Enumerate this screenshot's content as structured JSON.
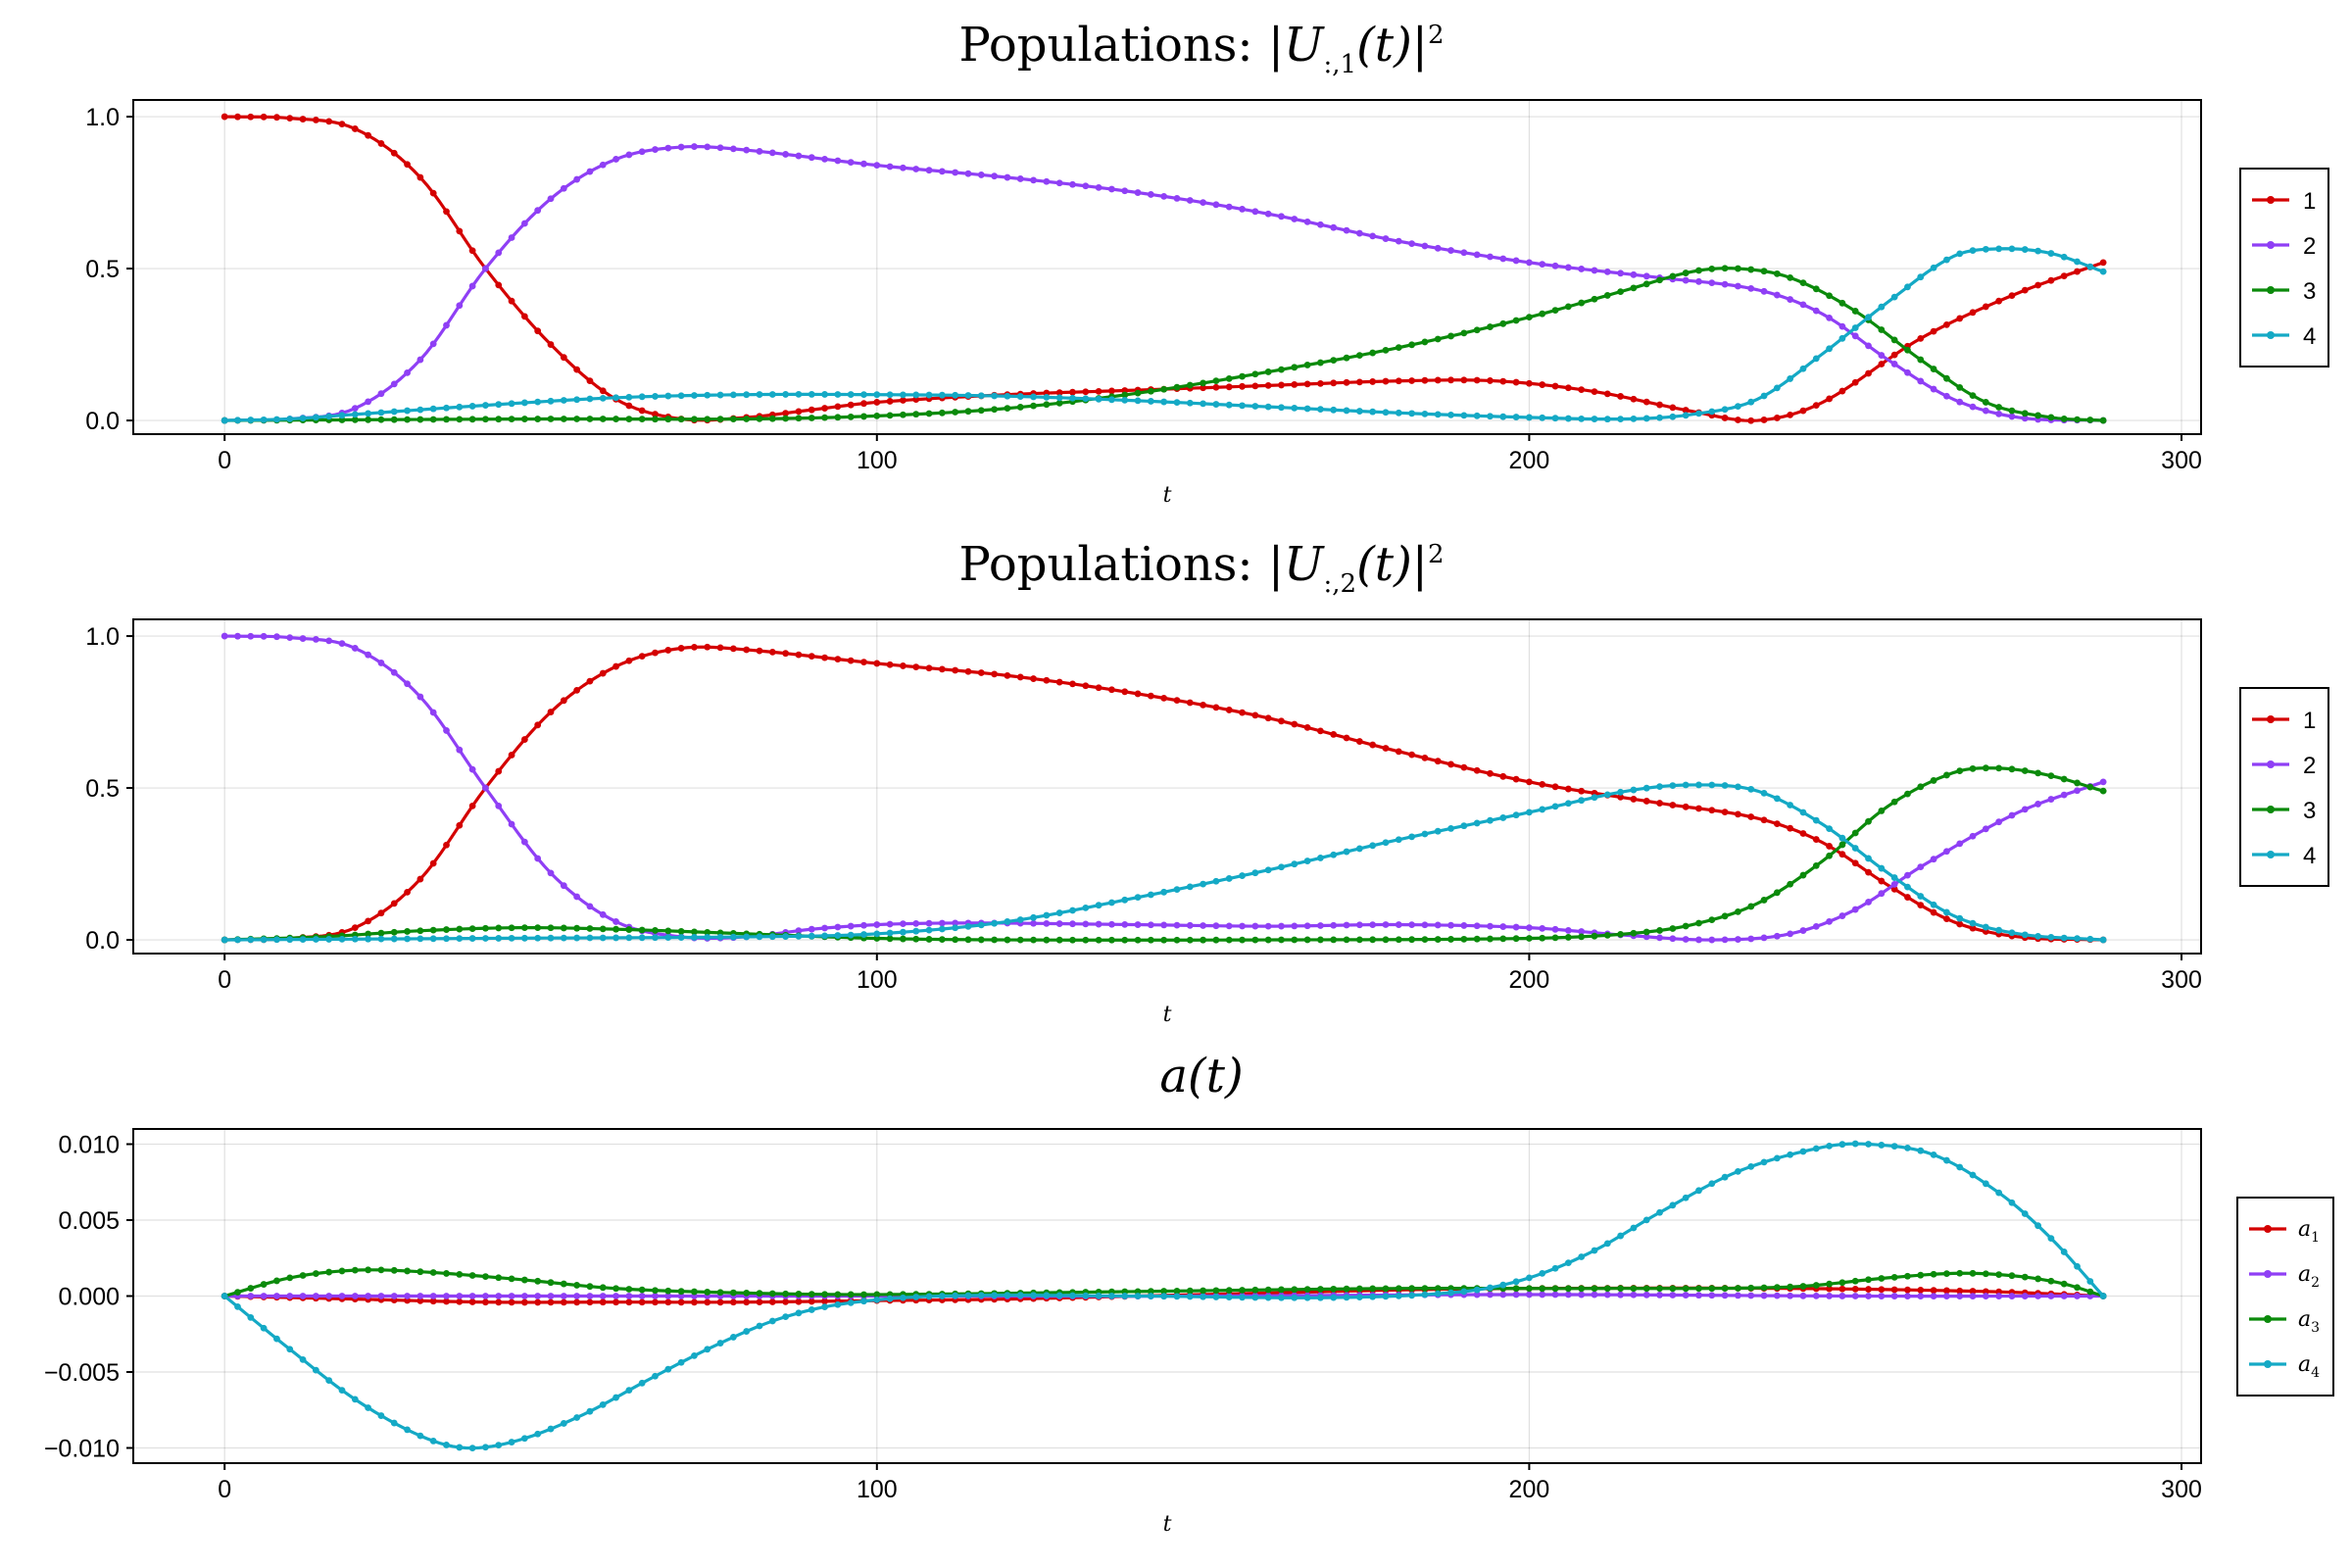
{
  "chart_data": [
    {
      "type": "line",
      "title": "Populations :  |U_{:,1}(t)|²",
      "title_parts": [
        "Populations",
        ":  ",
        "|U",
        ":,1",
        "(t)|",
        "2"
      ],
      "xlabel": "t",
      "ylabel": "",
      "xlim": [
        -14,
        303
      ],
      "ylim": [
        -0.045,
        1.055
      ],
      "xticks": [
        0,
        100,
        200,
        300
      ],
      "xtick_labels": [
        "0",
        "100",
        "200",
        "300"
      ],
      "yticks": [
        0.0,
        0.5,
        1.0
      ],
      "ytick_labels": [
        "0.0",
        "0.5",
        "1.0"
      ],
      "grid": true,
      "legend_position": "right",
      "marker": "small-dot",
      "x_range": [
        0,
        288
      ],
      "series": [
        {
          "name": "1",
          "color": "#d40000",
          "points": [
            [
              0,
              1.0
            ],
            [
              10,
              0.995
            ],
            [
              20,
              0.96
            ],
            [
              30,
              0.8
            ],
            [
              40,
              0.5
            ],
            [
              50,
              0.25
            ],
            [
              60,
              0.07
            ],
            [
              70,
              0.005
            ],
            [
              80,
              0.01
            ],
            [
              90,
              0.035
            ],
            [
              100,
              0.06
            ],
            [
              120,
              0.085
            ],
            [
              140,
              0.1
            ],
            [
              160,
              0.115
            ],
            [
              180,
              0.13
            ],
            [
              195,
              0.13
            ],
            [
              210,
              0.095
            ],
            [
              225,
              0.03
            ],
            [
              235,
              0.0
            ],
            [
              245,
              0.06
            ],
            [
              260,
              0.27
            ],
            [
              275,
              0.42
            ],
            [
              288,
              0.52
            ]
          ]
        },
        {
          "name": "2",
          "color": "#8f3ff5",
          "points": [
            [
              0,
              0.0
            ],
            [
              10,
              0.005
            ],
            [
              20,
              0.04
            ],
            [
              30,
              0.2
            ],
            [
              40,
              0.5
            ],
            [
              50,
              0.73
            ],
            [
              60,
              0.86
            ],
            [
              70,
              0.9
            ],
            [
              80,
              0.89
            ],
            [
              100,
              0.84
            ],
            [
              120,
              0.8
            ],
            [
              140,
              0.75
            ],
            [
              160,
              0.68
            ],
            [
              180,
              0.59
            ],
            [
              200,
              0.52
            ],
            [
              220,
              0.47
            ],
            [
              235,
              0.43
            ],
            [
              245,
              0.35
            ],
            [
              255,
              0.2
            ],
            [
              265,
              0.07
            ],
            [
              275,
              0.01
            ],
            [
              288,
              0.0
            ]
          ]
        },
        {
          "name": "3",
          "color": "#0b8a0b",
          "points": [
            [
              0,
              0.0
            ],
            [
              50,
              0.005
            ],
            [
              80,
              0.005
            ],
            [
              100,
              0.015
            ],
            [
              120,
              0.04
            ],
            [
              140,
              0.09
            ],
            [
              160,
              0.16
            ],
            [
              180,
              0.24
            ],
            [
              200,
              0.34
            ],
            [
              215,
              0.43
            ],
            [
              225,
              0.49
            ],
            [
              232,
              0.5
            ],
            [
              240,
              0.47
            ],
            [
              250,
              0.36
            ],
            [
              260,
              0.2
            ],
            [
              270,
              0.06
            ],
            [
              280,
              0.01
            ],
            [
              288,
              0.0
            ]
          ]
        },
        {
          "name": "4",
          "color": "#14a9c5",
          "points": [
            [
              0,
              0.0
            ],
            [
              10,
              0.005
            ],
            [
              20,
              0.02
            ],
            [
              40,
              0.05
            ],
            [
              60,
              0.075
            ],
            [
              80,
              0.085
            ],
            [
              100,
              0.085
            ],
            [
              120,
              0.08
            ],
            [
              140,
              0.065
            ],
            [
              160,
              0.045
            ],
            [
              180,
              0.025
            ],
            [
              200,
              0.01
            ],
            [
              215,
              0.005
            ],
            [
              225,
              0.02
            ],
            [
              235,
              0.07
            ],
            [
              245,
              0.22
            ],
            [
              255,
              0.39
            ],
            [
              265,
              0.54
            ],
            [
              272,
              0.565
            ],
            [
              280,
              0.55
            ],
            [
              288,
              0.49
            ]
          ]
        }
      ]
    },
    {
      "type": "line",
      "title": "Populations :  |U_{:,2}(t)|²",
      "title_parts": [
        "Populations",
        ":  ",
        "|U",
        ":,2",
        "(t)|",
        "2"
      ],
      "xlabel": "t",
      "ylabel": "",
      "xlim": [
        -14,
        303
      ],
      "ylim": [
        -0.045,
        1.055
      ],
      "xticks": [
        0,
        100,
        200,
        300
      ],
      "xtick_labels": [
        "0",
        "100",
        "200",
        "300"
      ],
      "yticks": [
        0.0,
        0.5,
        1.0
      ],
      "ytick_labels": [
        "0.0",
        "0.5",
        "1.0"
      ],
      "grid": true,
      "legend_position": "right",
      "marker": "small-dot",
      "x_range": [
        0,
        288
      ],
      "series": [
        {
          "name": "1",
          "color": "#d40000",
          "points": [
            [
              0,
              0.0
            ],
            [
              10,
              0.005
            ],
            [
              20,
              0.04
            ],
            [
              30,
              0.2
            ],
            [
              40,
              0.5
            ],
            [
              50,
              0.75
            ],
            [
              60,
              0.9
            ],
            [
              70,
              0.96
            ],
            [
              80,
              0.955
            ],
            [
              100,
              0.91
            ],
            [
              120,
              0.87
            ],
            [
              140,
              0.81
            ],
            [
              160,
              0.73
            ],
            [
              180,
              0.62
            ],
            [
              200,
              0.52
            ],
            [
              220,
              0.45
            ],
            [
              235,
              0.4
            ],
            [
              245,
              0.32
            ],
            [
              255,
              0.18
            ],
            [
              265,
              0.06
            ],
            [
              275,
              0.01
            ],
            [
              288,
              0.0
            ]
          ]
        },
        {
          "name": "2",
          "color": "#8f3ff5",
          "points": [
            [
              0,
              1.0
            ],
            [
              10,
              0.995
            ],
            [
              20,
              0.96
            ],
            [
              30,
              0.8
            ],
            [
              40,
              0.5
            ],
            [
              50,
              0.22
            ],
            [
              60,
              0.06
            ],
            [
              70,
              0.01
            ],
            [
              80,
              0.01
            ],
            [
              90,
              0.035
            ],
            [
              100,
              0.05
            ],
            [
              110,
              0.055
            ],
            [
              120,
              0.055
            ],
            [
              140,
              0.05
            ],
            [
              160,
              0.045
            ],
            [
              180,
              0.05
            ],
            [
              200,
              0.04
            ],
            [
              215,
              0.015
            ],
            [
              228,
              0.0
            ],
            [
              240,
              0.02
            ],
            [
              250,
              0.1
            ],
            [
              260,
              0.24
            ],
            [
              275,
              0.42
            ],
            [
              288,
              0.52
            ]
          ]
        },
        {
          "name": "3",
          "color": "#0b8a0b",
          "points": [
            [
              0,
              0.0
            ],
            [
              15,
              0.01
            ],
            [
              30,
              0.03
            ],
            [
              45,
              0.04
            ],
            [
              60,
              0.035
            ],
            [
              80,
              0.02
            ],
            [
              100,
              0.005
            ],
            [
              120,
              0.0
            ],
            [
              160,
              0.0
            ],
            [
              200,
              0.005
            ],
            [
              215,
              0.02
            ],
            [
              225,
              0.05
            ],
            [
              235,
              0.12
            ],
            [
              245,
              0.26
            ],
            [
              255,
              0.44
            ],
            [
              265,
              0.55
            ],
            [
              272,
              0.565
            ],
            [
              280,
              0.54
            ],
            [
              288,
              0.49
            ]
          ]
        },
        {
          "name": "4",
          "color": "#14a9c5",
          "points": [
            [
              0,
              0.0
            ],
            [
              40,
              0.005
            ],
            [
              80,
              0.01
            ],
            [
              100,
              0.02
            ],
            [
              120,
              0.06
            ],
            [
              140,
              0.14
            ],
            [
              160,
              0.23
            ],
            [
              180,
              0.33
            ],
            [
              200,
              0.42
            ],
            [
              215,
              0.49
            ],
            [
              225,
              0.51
            ],
            [
              235,
              0.49
            ],
            [
              245,
              0.38
            ],
            [
              255,
              0.22
            ],
            [
              265,
              0.08
            ],
            [
              275,
              0.02
            ],
            [
              288,
              0.0
            ]
          ]
        }
      ]
    },
    {
      "type": "line",
      "title": "a(t)",
      "title_parts": [
        "a(t)"
      ],
      "xlabel": "t",
      "ylabel": "",
      "xlim": [
        -14,
        303
      ],
      "ylim": [
        -0.011,
        0.011
      ],
      "xticks": [
        0,
        100,
        200,
        300
      ],
      "xtick_labels": [
        "0",
        "100",
        "200",
        "300"
      ],
      "yticks": [
        -0.01,
        -0.005,
        0.0,
        0.005,
        0.01
      ],
      "ytick_labels": [
        "−0.010",
        "−0.005",
        "0.000",
        "0.005",
        "0.010"
      ],
      "grid": true,
      "legend_position": "right",
      "legend_math": true,
      "marker": "small-dot",
      "x_range": [
        0,
        288
      ],
      "series": [
        {
          "name": "a",
          "subscript": "1",
          "color": "#d40000",
          "points": [
            [
              0,
              0.0
            ],
            [
              20,
              -0.0002
            ],
            [
              40,
              -0.0004
            ],
            [
              60,
              -0.0004
            ],
            [
              80,
              -0.0004
            ],
            [
              100,
              -0.0003
            ],
            [
              120,
              -0.0002
            ],
            [
              140,
              0.0
            ],
            [
              160,
              0.0002
            ],
            [
              180,
              0.0004
            ],
            [
              200,
              0.0005
            ],
            [
              240,
              0.0005
            ],
            [
              270,
              0.0003
            ],
            [
              288,
              0.0
            ]
          ]
        },
        {
          "name": "a",
          "subscript": "2",
          "color": "#8f3ff5",
          "points": [
            [
              0,
              0.0
            ],
            [
              100,
              0.0
            ],
            [
              150,
              0.0
            ],
            [
              200,
              0.0001
            ],
            [
              250,
              0.0
            ],
            [
              288,
              0.0
            ]
          ]
        },
        {
          "name": "a",
          "subscript": "3",
          "color": "#0b8a0b",
          "points": [
            [
              0,
              0.0
            ],
            [
              10,
              0.0012
            ],
            [
              20,
              0.0017
            ],
            [
              30,
              0.0016
            ],
            [
              45,
              0.0011
            ],
            [
              60,
              0.0005
            ],
            [
              80,
              0.0002
            ],
            [
              100,
              0.0001
            ],
            [
              140,
              0.0003
            ],
            [
              180,
              0.0005
            ],
            [
              210,
              0.0005
            ],
            [
              240,
              0.0006
            ],
            [
              255,
              0.0012
            ],
            [
              266,
              0.0015
            ],
            [
              275,
              0.0013
            ],
            [
              282,
              0.0008
            ],
            [
              288,
              0.0
            ]
          ]
        },
        {
          "name": "a",
          "subscript": "4",
          "color": "#14a9c5",
          "points": [
            [
              0,
              0.0
            ],
            [
              10,
              -0.0035
            ],
            [
              20,
              -0.0068
            ],
            [
              30,
              -0.0092
            ],
            [
              37,
              -0.01
            ],
            [
              45,
              -0.0095
            ],
            [
              55,
              -0.0078
            ],
            [
              65,
              -0.0055
            ],
            [
              75,
              -0.0033
            ],
            [
              85,
              -0.0015
            ],
            [
              95,
              -0.0005
            ],
            [
              110,
              0.0
            ],
            [
              140,
              0.0
            ],
            [
              170,
              -0.0001
            ],
            [
              190,
              0.0003
            ],
            [
              200,
              0.0012
            ],
            [
              210,
              0.003
            ],
            [
              220,
              0.0055
            ],
            [
              232,
              0.0082
            ],
            [
              245,
              0.0098
            ],
            [
              252,
              0.01
            ],
            [
              262,
              0.0093
            ],
            [
              272,
              0.0068
            ],
            [
              280,
              0.0038
            ],
            [
              288,
              0.0
            ]
          ]
        }
      ]
    }
  ]
}
